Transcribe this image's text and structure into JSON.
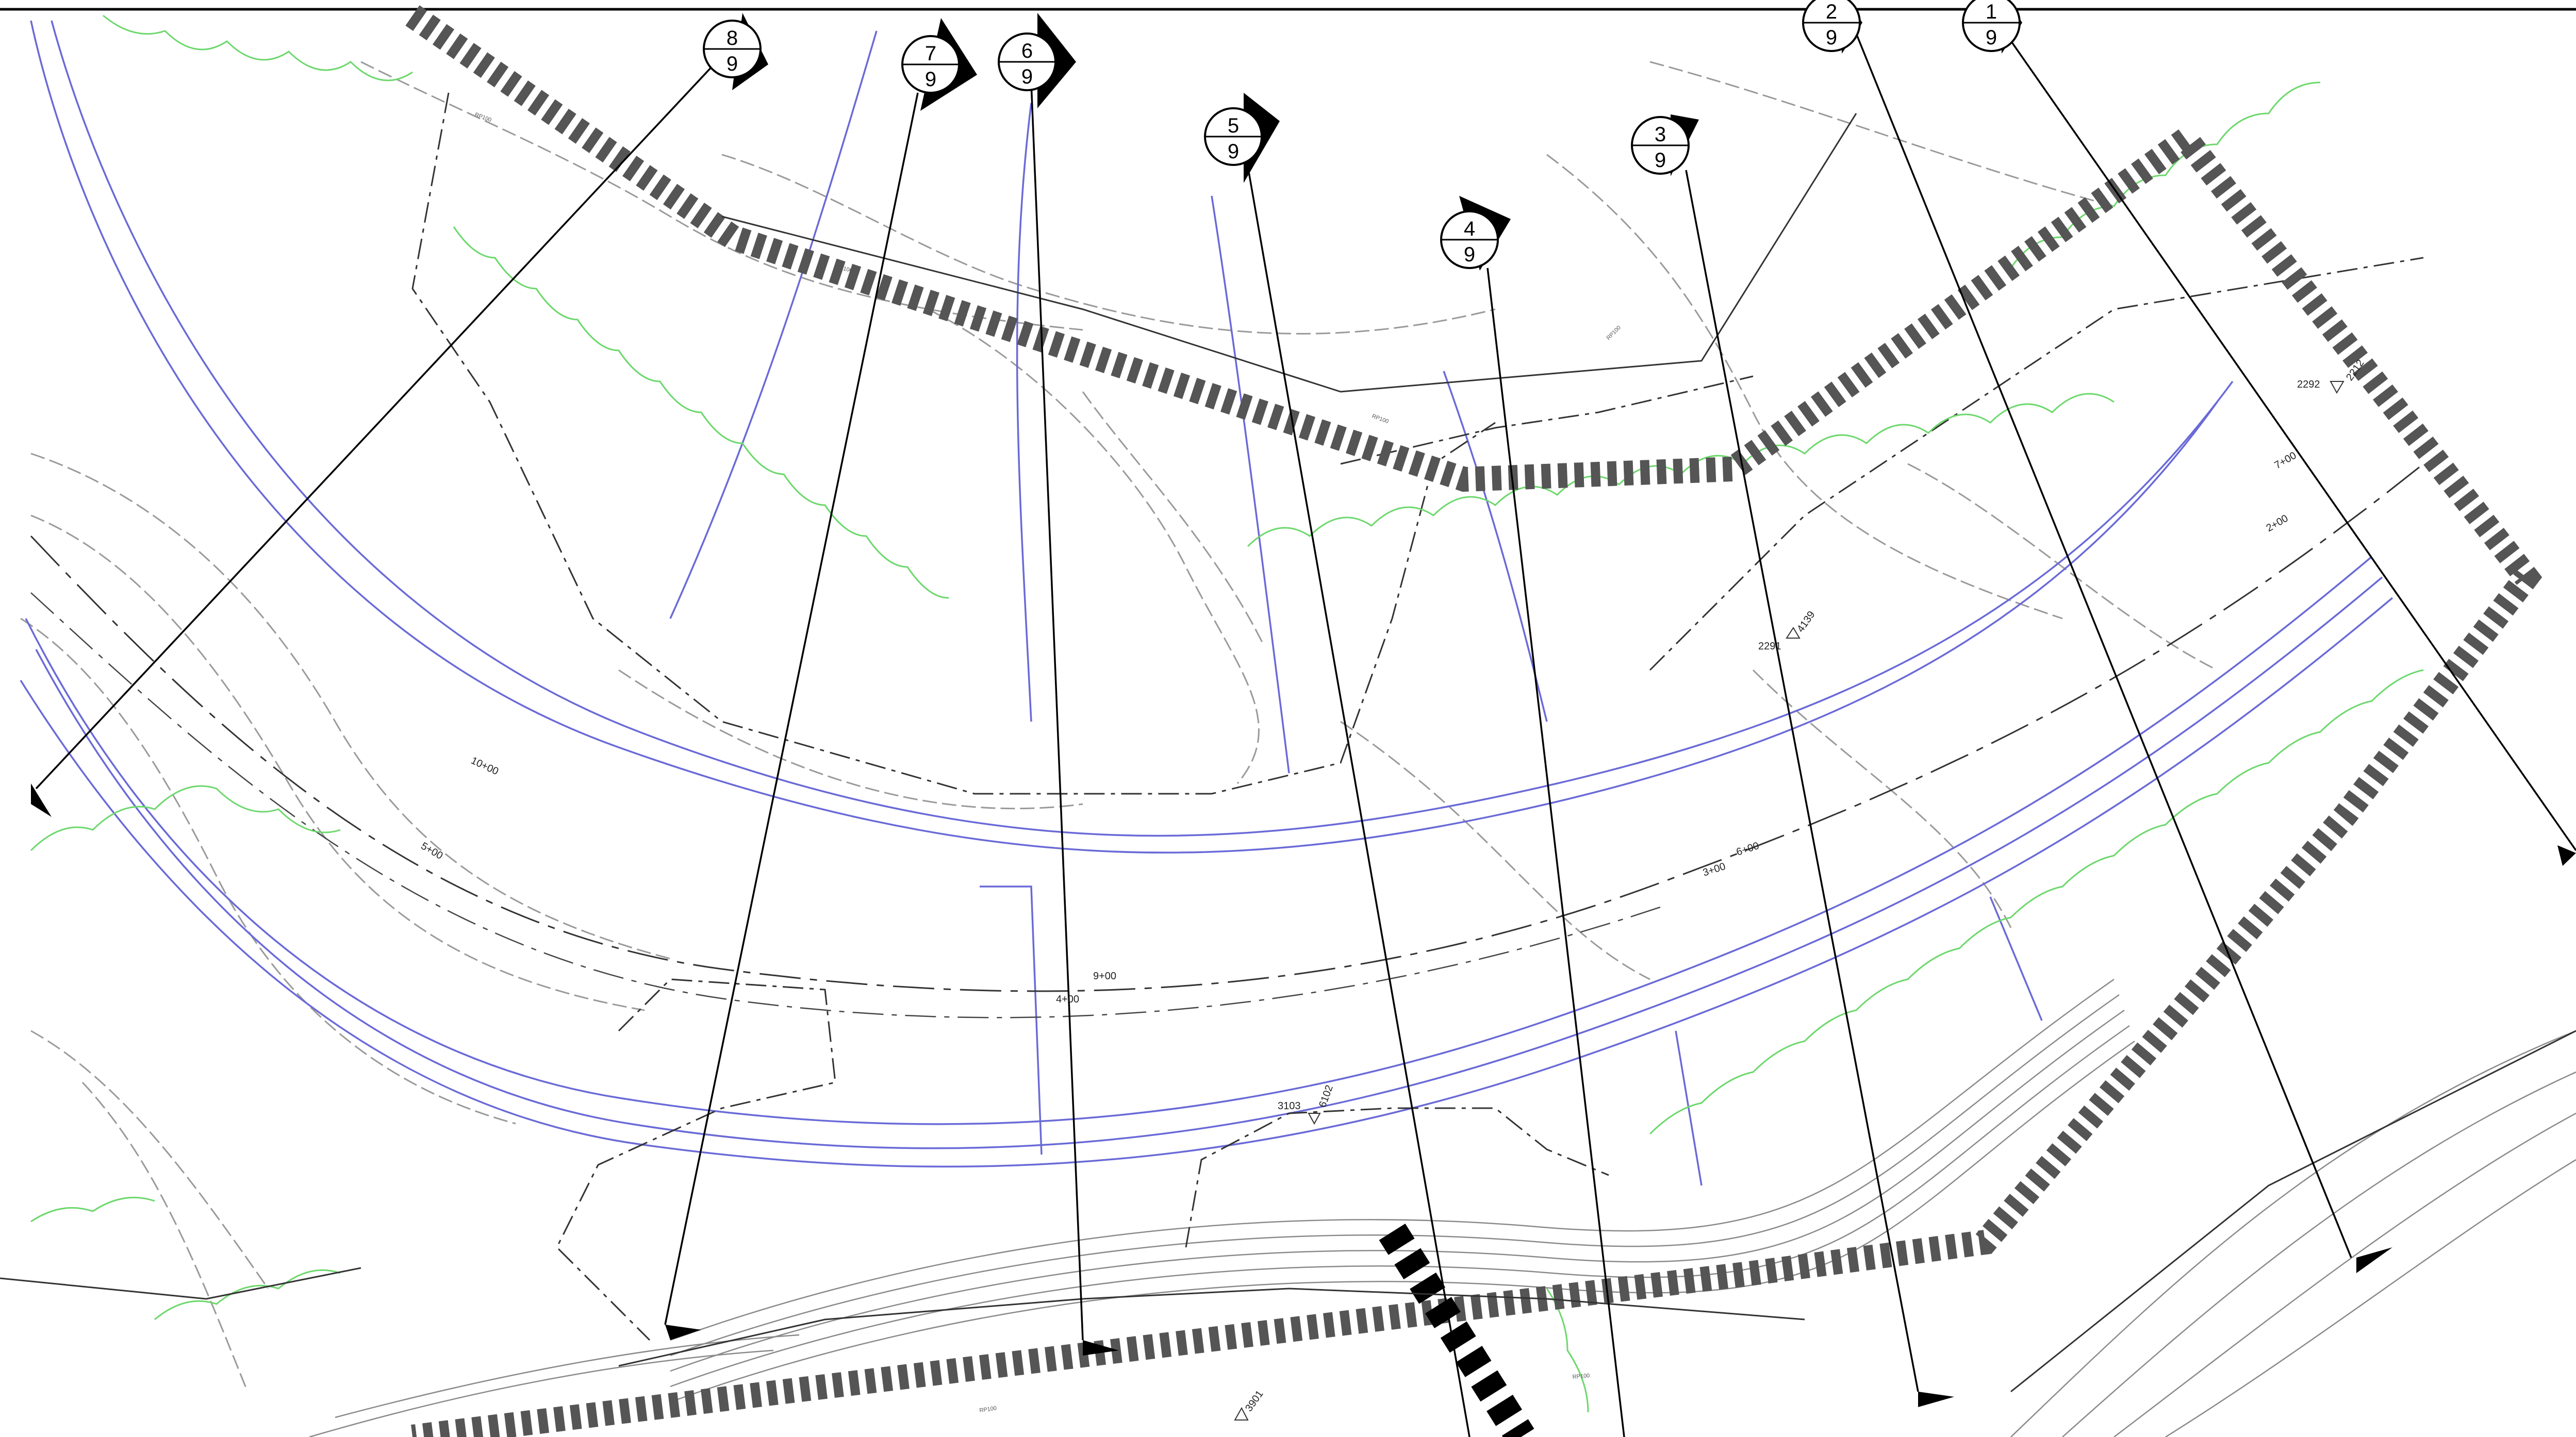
{
  "drawing": {
    "colors": {
      "background": "#ffffff",
      "contour": "#9a9a9a",
      "proposed_contour": "#6a6ad8",
      "tree_line": "#6cd86c",
      "limit_line": "#555555",
      "ink": "#000000"
    },
    "section_markers": [
      {
        "id": "1",
        "sheet": "9"
      },
      {
        "id": "2",
        "sheet": "9"
      },
      {
        "id": "3",
        "sheet": "9"
      },
      {
        "id": "4",
        "sheet": "9"
      },
      {
        "id": "5",
        "sheet": "9"
      },
      {
        "id": "6",
        "sheet": "9"
      },
      {
        "id": "7",
        "sheet": "9"
      },
      {
        "id": "8",
        "sheet": "9"
      }
    ],
    "stations": {
      "s200": "2+00",
      "s300": "3+00",
      "s400": "4+00",
      "s500": "5+00",
      "s600": "6+00",
      "s700": "7+00",
      "s900": "9+00",
      "s1000": "10+00"
    },
    "survey_points": {
      "p2292": "2292",
      "p2291": "2291",
      "p4139": "4139",
      "p2212": "2212",
      "p3103": "3103",
      "p6102": "6102",
      "p3901": "3901"
    },
    "contour_tag": "RP100"
  }
}
